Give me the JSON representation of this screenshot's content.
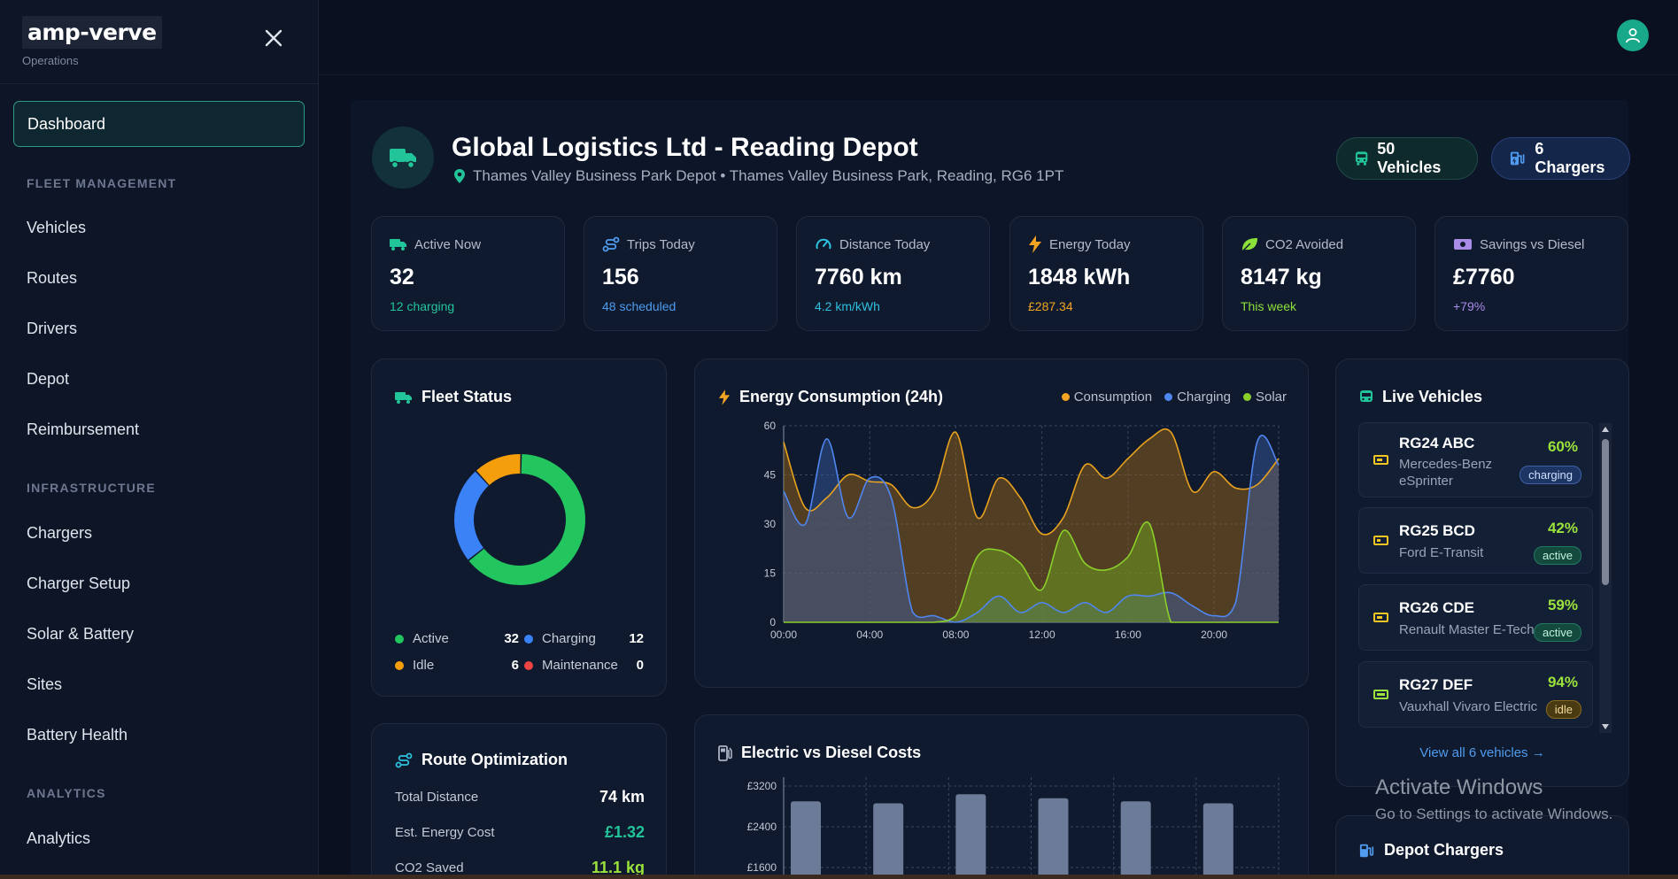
{
  "brand": {
    "logo": "amp-verve",
    "subtitle": "Operations"
  },
  "nav": {
    "active": "Dashboard",
    "sections": [
      {
        "title": "FLEET MANAGEMENT",
        "items": [
          "Vehicles",
          "Routes",
          "Drivers",
          "Depot",
          "Reimbursement"
        ]
      },
      {
        "title": "INFRASTRUCTURE",
        "items": [
          "Chargers",
          "Charger Setup",
          "Solar & Battery",
          "Sites",
          "Battery Health"
        ]
      },
      {
        "title": "ANALYTICS",
        "items": [
          "Analytics"
        ]
      }
    ]
  },
  "depot": {
    "title": "Global Logistics Ltd - Reading Depot",
    "address": "Thames Valley Business Park Depot • Thames Valley Business Park, Reading, RG6 1PT",
    "vehicles_pill": "50 Vehicles",
    "chargers_pill": "6 Chargers"
  },
  "stats": [
    {
      "label": "Active Now",
      "value": "32",
      "sub": "12 charging",
      "icon": "truck-icon",
      "color": "#22c59a"
    },
    {
      "label": "Trips Today",
      "value": "156",
      "sub": "48 scheduled",
      "icon": "route-icon",
      "color": "#4f9cf0"
    },
    {
      "label": "Distance Today",
      "value": "7760 km",
      "sub": "4.2 km/kWh",
      "icon": "gauge-icon",
      "color": "#2fc0e0"
    },
    {
      "label": "Energy Today",
      "value": "1848 kWh",
      "sub": "£287.34",
      "icon": "lightning-icon",
      "color": "#f2a523"
    },
    {
      "label": "CO2 Avoided",
      "value": "8147 kg",
      "sub": "This week",
      "icon": "leaf-icon",
      "color": "#8be03a"
    },
    {
      "label": "Savings vs Diesel",
      "value": "£7760",
      "sub": "+79%",
      "icon": "money-icon",
      "color": "#a98be8"
    }
  ],
  "fleet_status": {
    "title": "Fleet Status",
    "items": [
      {
        "label": "Active",
        "value": "32",
        "color": "#22c55e"
      },
      {
        "label": "Charging",
        "value": "12",
        "color": "#3b82f6"
      },
      {
        "label": "Idle",
        "value": "6",
        "color": "#f59e0b"
      },
      {
        "label": "Maintenance",
        "value": "0",
        "color": "#ef4444"
      }
    ]
  },
  "energy": {
    "title": "Energy Consumption (24h)",
    "legend": [
      "Consumption",
      "Charging",
      "Solar"
    ]
  },
  "costs": {
    "title": "Electric vs Diesel Costs"
  },
  "route": {
    "title": "Route Optimization",
    "rows": [
      {
        "label": "Total Distance",
        "value": "74 km",
        "color": "#ffffff"
      },
      {
        "label": "Est. Energy Cost",
        "value": "£1.32",
        "color": "#22c59a"
      },
      {
        "label": "CO2 Saved",
        "value": "11.1 kg",
        "color": "#9be23c"
      }
    ]
  },
  "live": {
    "title": "Live Vehicles",
    "vehicles": [
      {
        "id": "RG24 ABC",
        "model": "Mercedes-Benz eSprinter",
        "pct": "60%",
        "status": "charging",
        "level": 0.6
      },
      {
        "id": "RG25 BCD",
        "model": "Ford E-Transit",
        "pct": "42%",
        "status": "active",
        "level": 0.42
      },
      {
        "id": "RG26 CDE",
        "model": "Renault Master E-Tech",
        "pct": "59%",
        "status": "active",
        "level": 0.59
      },
      {
        "id": "RG27 DEF",
        "model": "Vauxhall Vivaro Electric",
        "pct": "94%",
        "status": "idle",
        "level": 0.94
      }
    ],
    "view_all": "View all 6 vehicles →"
  },
  "depot_chargers": {
    "title": "Depot Chargers"
  },
  "watermark": {
    "line1": "Activate Windows",
    "line2": "Go to Settings to activate Windows."
  },
  "chart_data": [
    {
      "type": "pie",
      "categories": [
        "Active",
        "Charging",
        "Idle",
        "Maintenance"
      ],
      "values": [
        32,
        12,
        6,
        0
      ]
    },
    {
      "type": "area",
      "title": "Energy Consumption (24h)",
      "x": [
        "00:00",
        "01:00",
        "02:00",
        "03:00",
        "04:00",
        "05:00",
        "06:00",
        "07:00",
        "08:00",
        "09:00",
        "10:00",
        "11:00",
        "12:00",
        "13:00",
        "14:00",
        "15:00",
        "16:00",
        "17:00",
        "18:00",
        "19:00",
        "20:00",
        "21:00",
        "22:00",
        "23:00"
      ],
      "xticks": [
        "00:00",
        "04:00",
        "08:00",
        "12:00",
        "16:00",
        "20:00"
      ],
      "ylim": [
        0,
        60
      ],
      "yticks": [
        0,
        15,
        30,
        45,
        60
      ],
      "series": [
        {
          "name": "Consumption",
          "values": [
            55,
            35,
            38,
            45,
            43,
            42,
            35,
            40,
            58,
            32,
            44,
            38,
            27,
            32,
            48,
            44,
            50,
            56,
            58,
            40,
            46,
            41,
            42,
            50
          ]
        },
        {
          "name": "Charging",
          "values": [
            40,
            30,
            56,
            32,
            44,
            38,
            3,
            2,
            0,
            3,
            8,
            3,
            6,
            3,
            6,
            3,
            8,
            8,
            9,
            5,
            2,
            6,
            55,
            48
          ]
        },
        {
          "name": "Solar",
          "values": [
            0,
            0,
            0,
            0,
            0,
            0,
            0,
            0,
            2,
            20,
            22,
            18,
            10,
            28,
            18,
            16,
            20,
            30,
            0,
            0,
            0,
            0,
            0,
            0
          ]
        }
      ]
    },
    {
      "type": "bar",
      "title": "Electric vs Diesel Costs",
      "yticks_visible": [
        "£1600",
        "£2400",
        "£3200"
      ],
      "values": [
        2900,
        2860,
        3040,
        2960,
        2900,
        2860
      ]
    }
  ]
}
